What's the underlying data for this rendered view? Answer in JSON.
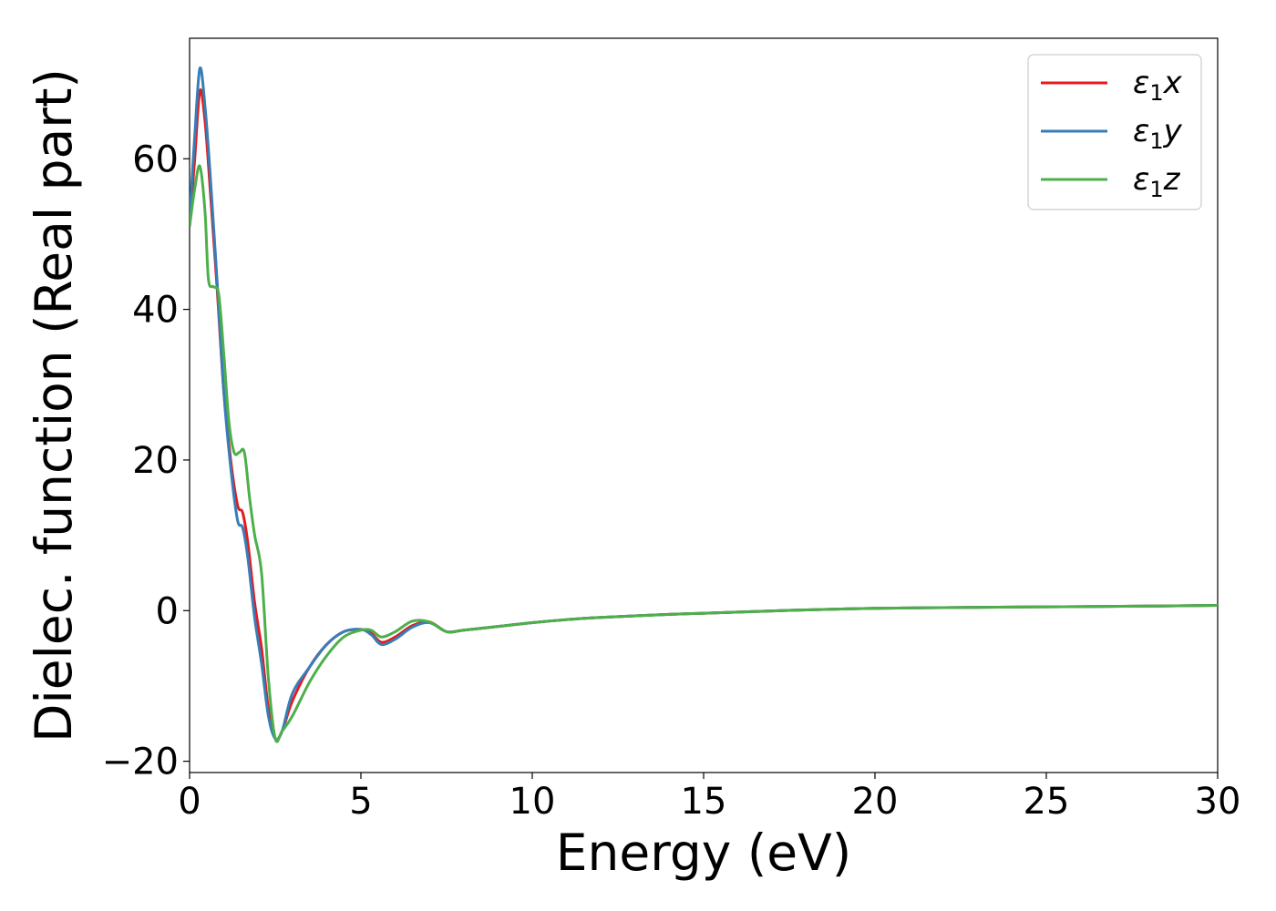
{
  "chart_data": {
    "type": "line",
    "title": "",
    "xlabel": "Energy (eV)",
    "ylabel": "Dielec. function (Real part)",
    "xlim": [
      0,
      30
    ],
    "ylim": [
      -21.5,
      76
    ],
    "xticks": [
      0,
      5,
      10,
      15,
      20,
      25,
      30
    ],
    "xtick_labels": [
      "0",
      "5",
      "10",
      "15",
      "20",
      "25",
      "30"
    ],
    "yticks": [
      -20,
      0,
      20,
      40,
      60
    ],
    "ytick_labels": [
      "−20",
      "0",
      "20",
      "40",
      "60"
    ],
    "grid": false,
    "legend": {
      "placement": "top-right"
    },
    "series": [
      {
        "name": "ε₁x",
        "name_main": "ε",
        "name_sub": "1",
        "name_suffix": "x",
        "color": "#e41a1c",
        "x": [
          0,
          0.15,
          0.3,
          0.45,
          0.6,
          0.8,
          1.0,
          1.2,
          1.4,
          1.55,
          1.7,
          1.9,
          2.1,
          2.3,
          2.5,
          2.7,
          3.0,
          3.5,
          4.0,
          4.5,
          5.0,
          5.3,
          5.6,
          6.0,
          6.5,
          7.0,
          7.5,
          8.0,
          9.0,
          10,
          11,
          12,
          14,
          16,
          18,
          20,
          22,
          25,
          28,
          30
        ],
        "y": [
          51,
          60,
          69,
          65,
          56,
          43,
          29,
          20,
          14,
          13,
          9,
          1,
          -5,
          -13,
          -17,
          -16,
          -12,
          -7.5,
          -4.5,
          -2.8,
          -2.5,
          -3.0,
          -4.2,
          -3.5,
          -2.0,
          -1.5,
          -2.8,
          -2.6,
          -2.1,
          -1.6,
          -1.2,
          -0.9,
          -0.5,
          -0.2,
          0.1,
          0.3,
          0.4,
          0.5,
          0.6,
          0.7
        ]
      },
      {
        "name": "ε₁y",
        "name_main": "ε",
        "name_sub": "1",
        "name_suffix": "y",
        "color": "#377eb8",
        "x": [
          0,
          0.15,
          0.3,
          0.45,
          0.6,
          0.8,
          1.0,
          1.2,
          1.4,
          1.55,
          1.7,
          1.9,
          2.1,
          2.3,
          2.5,
          2.7,
          3.0,
          3.5,
          4.0,
          4.5,
          5.0,
          5.3,
          5.6,
          6.0,
          6.5,
          7.0,
          7.5,
          8.0,
          9.0,
          10,
          11,
          12,
          14,
          16,
          18,
          20,
          22,
          25,
          28,
          30
        ],
        "y": [
          52,
          63,
          72,
          67,
          58,
          44,
          29,
          19,
          12,
          11,
          7,
          -1,
          -7,
          -14,
          -17,
          -16,
          -11,
          -7.5,
          -4.5,
          -2.8,
          -2.5,
          -3.2,
          -4.5,
          -3.8,
          -2.2,
          -1.6,
          -2.8,
          -2.6,
          -2.1,
          -1.6,
          -1.2,
          -0.9,
          -0.5,
          -0.2,
          0.1,
          0.3,
          0.4,
          0.5,
          0.6,
          0.7
        ]
      },
      {
        "name": "ε₁z",
        "name_main": "ε",
        "name_sub": "1",
        "name_suffix": "z",
        "color": "#4daf4a",
        "x": [
          0,
          0.15,
          0.3,
          0.45,
          0.55,
          0.7,
          0.85,
          1.0,
          1.15,
          1.3,
          1.45,
          1.6,
          1.75,
          1.9,
          2.1,
          2.3,
          2.5,
          2.7,
          3.0,
          3.5,
          4.0,
          4.5,
          5.0,
          5.3,
          5.6,
          6.0,
          6.5,
          7.0,
          7.5,
          8.0,
          9.0,
          10,
          11,
          12,
          14,
          16,
          18,
          20,
          22,
          25,
          28,
          30
        ],
        "y": [
          51,
          56,
          59,
          53,
          44,
          43,
          42,
          34,
          25,
          21,
          21,
          21,
          15,
          10,
          5,
          -9,
          -17,
          -16,
          -14,
          -9.5,
          -6,
          -3.5,
          -2.6,
          -2.6,
          -3.5,
          -2.8,
          -1.4,
          -1.5,
          -2.8,
          -2.6,
          -2.1,
          -1.6,
          -1.2,
          -0.9,
          -0.5,
          -0.2,
          0.1,
          0.3,
          0.4,
          0.5,
          0.6,
          0.7
        ]
      }
    ]
  }
}
